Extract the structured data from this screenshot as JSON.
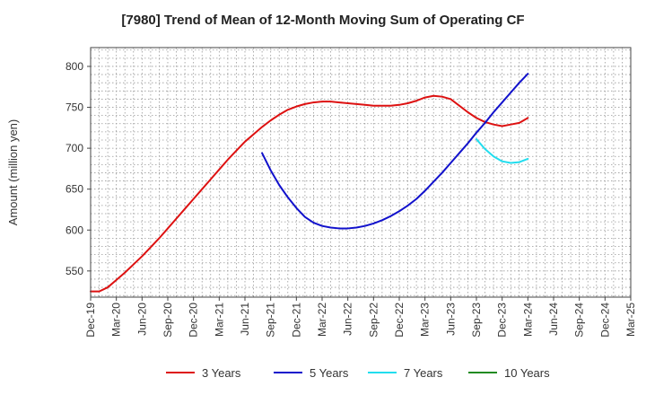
{
  "chart_data": {
    "type": "line",
    "title": "[7980]  Trend of Mean of 12-Month Moving Sum of Operating CF",
    "xlabel": "",
    "ylabel": "Amount (million yen)",
    "ylim": [
      518,
      823
    ],
    "yticks": [
      550,
      600,
      650,
      700,
      750,
      800
    ],
    "xlim": [
      "2019-12",
      "2025-03"
    ],
    "xticks": [
      "Dec-19",
      "Mar-20",
      "Jun-20",
      "Sep-20",
      "Dec-20",
      "Mar-21",
      "Jun-21",
      "Sep-21",
      "Dec-21",
      "Mar-22",
      "Jun-22",
      "Sep-22",
      "Dec-22",
      "Mar-23",
      "Jun-23",
      "Sep-23",
      "Dec-23",
      "Mar-24",
      "Jun-24",
      "Sep-24",
      "Dec-24",
      "Mar-25"
    ],
    "grid": true,
    "legend_position": "bottom",
    "series": [
      {
        "name": "3 Years",
        "color": "#dd1111",
        "x": [
          "2019-12",
          "2020-01",
          "2020-02",
          "2020-03",
          "2020-04",
          "2020-05",
          "2020-06",
          "2020-07",
          "2020-08",
          "2020-09",
          "2020-10",
          "2020-11",
          "2020-12",
          "2021-01",
          "2021-02",
          "2021-03",
          "2021-04",
          "2021-05",
          "2021-06",
          "2021-07",
          "2021-08",
          "2021-09",
          "2021-10",
          "2021-11",
          "2021-12",
          "2022-01",
          "2022-02",
          "2022-03",
          "2022-04",
          "2022-05",
          "2022-06",
          "2022-07",
          "2022-08",
          "2022-09",
          "2022-10",
          "2022-11",
          "2022-12",
          "2023-01",
          "2023-02",
          "2023-03",
          "2023-04",
          "2023-05",
          "2023-06",
          "2023-07",
          "2023-08",
          "2023-09",
          "2023-10",
          "2023-11",
          "2023-12",
          "2024-01",
          "2024-02",
          "2024-03"
        ],
        "values": [
          525,
          525,
          530,
          539,
          548,
          558,
          568,
          579,
          590,
          602,
          614,
          626,
          638,
          650,
          662,
          674,
          686,
          697,
          708,
          717,
          726,
          734,
          741,
          747,
          751,
          754,
          756,
          757,
          757,
          756,
          755,
          754,
          753,
          752,
          752,
          752,
          753,
          755,
          758,
          762,
          764,
          763,
          760,
          752,
          744,
          737,
          732,
          729,
          727,
          729,
          731,
          737
        ]
      },
      {
        "name": "5 Years",
        "color": "#1111cc",
        "x": [
          "2021-08",
          "2021-09",
          "2021-10",
          "2021-11",
          "2021-12",
          "2022-01",
          "2022-02",
          "2022-03",
          "2022-04",
          "2022-05",
          "2022-06",
          "2022-07",
          "2022-08",
          "2022-09",
          "2022-10",
          "2022-11",
          "2022-12",
          "2023-01",
          "2023-02",
          "2023-03",
          "2023-04",
          "2023-05",
          "2023-06",
          "2023-07",
          "2023-08",
          "2023-09",
          "2023-10",
          "2023-11",
          "2023-12",
          "2024-01",
          "2024-02",
          "2024-03"
        ],
        "values": [
          694,
          673,
          655,
          640,
          627,
          616,
          609,
          605,
          603,
          602,
          602,
          603,
          605,
          608,
          612,
          617,
          623,
          630,
          638,
          648,
          659,
          670,
          682,
          694,
          706,
          719,
          731,
          744,
          756,
          768,
          780,
          791
        ]
      },
      {
        "name": "7 Years",
        "color": "#22ddee",
        "x": [
          "2023-09",
          "2023-10",
          "2023-11",
          "2023-12",
          "2024-01",
          "2024-02",
          "2024-03"
        ],
        "values": [
          711,
          699,
          690,
          684,
          682,
          683,
          687
        ]
      },
      {
        "name": "10 Years",
        "color": "#228b22",
        "x": [],
        "values": []
      }
    ]
  }
}
